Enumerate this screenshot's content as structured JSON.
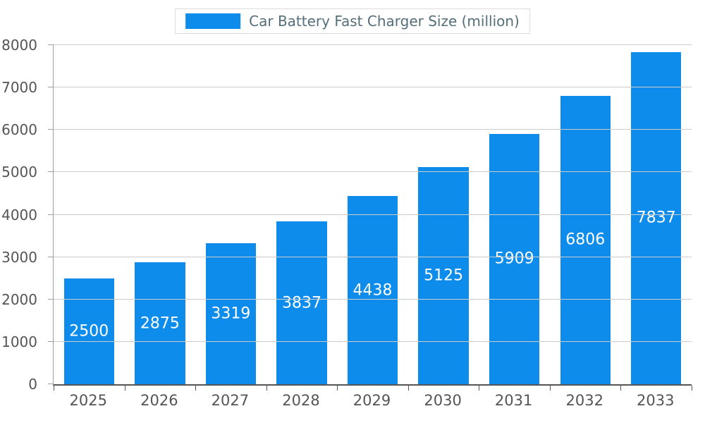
{
  "chart_data": {
    "type": "bar",
    "title": "Car Battery Fast Charger Size (million)",
    "categories": [
      "2025",
      "2026",
      "2027",
      "2028",
      "2029",
      "2030",
      "2031",
      "2032",
      "2033"
    ],
    "values": [
      2500,
      2875,
      3319,
      3837,
      4438,
      5125,
      5909,
      6806,
      7837
    ],
    "xlabel": "",
    "ylabel": "",
    "ylim": [
      0,
      8000
    ],
    "yticks": [
      0,
      1000,
      2000,
      3000,
      4000,
      5000,
      6000,
      7000,
      8000
    ],
    "grid": true,
    "legend_position": "top",
    "bar_color": "#0d8ceb",
    "value_label_color": "#ffffff",
    "title_color": "#546e7a",
    "axis_label_color": "#555555"
  }
}
